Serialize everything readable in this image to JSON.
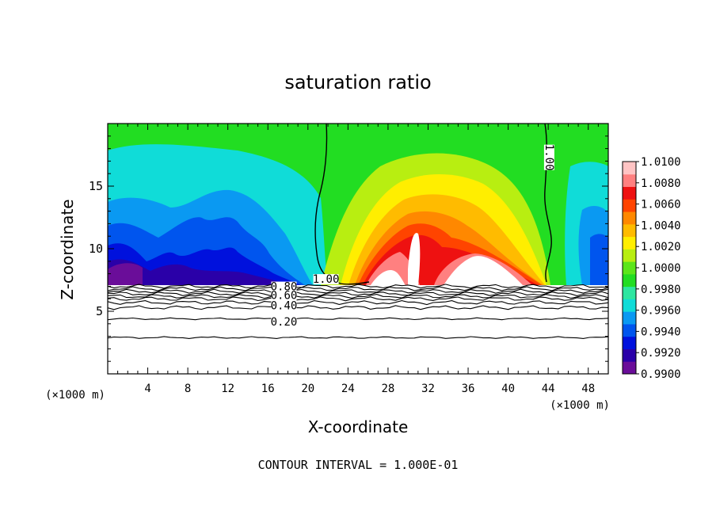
{
  "chart_data": {
    "type": "heatmap",
    "title": "saturation ratio",
    "xlabel": "X-coordinate",
    "ylabel": "Z-coordinate",
    "x_unit_left": "(×1000 m)",
    "x_unit_right": "(×1000 m)",
    "footer": "CONTOUR INTERVAL = 1.000E-01",
    "xlim": [
      0,
      50
    ],
    "ylim": [
      0,
      20
    ],
    "x_ticks": [
      4,
      8,
      12,
      16,
      20,
      24,
      28,
      32,
      36,
      40,
      44,
      48
    ],
    "y_ticks": [
      5,
      10,
      15
    ],
    "colorbar": {
      "min": 0.99,
      "max": 1.01,
      "tick_labels": [
        "1.0100",
        "1.0080",
        "1.0060",
        "1.0040",
        "1.0020",
        "1.0000",
        "0.9980",
        "0.9960",
        "0.9940",
        "0.9920",
        "0.9900"
      ]
    },
    "contour_labels": [
      {
        "text": "1.00",
        "x": 21.8,
        "y": 7.4
      },
      {
        "text": "1.00",
        "x": 43.9,
        "y": 17.3
      },
      {
        "text": "0.80",
        "x": 17.6,
        "y": 6.8
      },
      {
        "text": "0.60",
        "x": 17.6,
        "y": 6.1
      },
      {
        "text": "0.40",
        "x": 17.6,
        "y": 5.3
      },
      {
        "text": "0.20",
        "x": 17.6,
        "y": 4.0
      }
    ],
    "contour_lines_y": [
      7.0,
      6.8,
      6.6,
      6.4,
      6.2,
      6.0,
      5.7,
      5.3,
      4.4,
      2.9
    ],
    "cloud_base_z": 7.2
  },
  "colors": {
    "scale": [
      "#6a0d99",
      "#2a00a8",
      "#0011dd",
      "#0055ee",
      "#0a99f2",
      "#10dcd8",
      "#2ee6a0",
      "#22dd22",
      "#5ce61a",
      "#b8ee11",
      "#ffee00",
      "#ffbb00",
      "#ff8800",
      "#ff4400",
      "#ee1111",
      "#ff8080",
      "#ffc4c4"
    ],
    "line": "#000000"
  }
}
